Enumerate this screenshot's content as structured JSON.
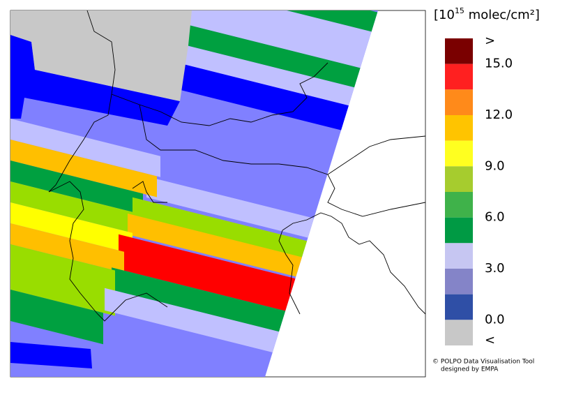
{
  "legend": {
    "title": {
      "prefix": "[10",
      "exponent": "15",
      "suffix": " molec/cm²]"
    },
    "labels": [
      ">",
      "15.0",
      "12.0",
      "9.0",
      "6.0",
      "3.0",
      "0.0",
      "<"
    ],
    "colors": [
      "#7a0000",
      "#ff2020",
      "#ff8a1a",
      "#ffc400",
      "#ffff20",
      "#a6cc2e",
      "#3fb24a",
      "#009a44",
      "#c6c6f2",
      "#8484c8",
      "#2f4fa6",
      "#c8c8c8"
    ]
  },
  "credit": {
    "line1": "© POLPO Data Visualisation Tool",
    "line2": "designed by EMPA"
  }
}
